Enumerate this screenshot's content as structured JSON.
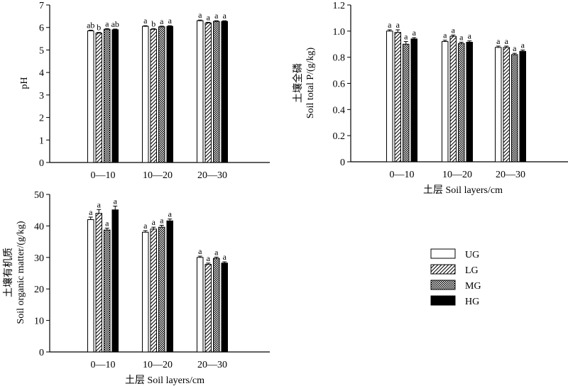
{
  "legend": {
    "entries": [
      {
        "key": "UG",
        "pattern": "white"
      },
      {
        "key": "LG",
        "pattern": "hatch"
      },
      {
        "key": "MG",
        "pattern": "checker"
      },
      {
        "key": "HG",
        "pattern": "black"
      }
    ]
  },
  "chart_data": [
    {
      "id": "ph",
      "type": "bar",
      "ylabel": "pH",
      "xlabel": "",
      "ylim": [
        0,
        7
      ],
      "yticks": [
        "0",
        "1",
        "2",
        "3",
        "4",
        "5",
        "6",
        "7"
      ],
      "categories": [
        "0—10",
        "10—20",
        "20—30"
      ],
      "series": [
        {
          "name": "UG",
          "values": [
            5.85,
            6.05,
            6.3
          ],
          "errors": [
            0.03,
            0.03,
            0.03
          ],
          "letters": [
            "ab",
            "a",
            "a"
          ]
        },
        {
          "name": "LG",
          "values": [
            5.75,
            5.92,
            6.2
          ],
          "errors": [
            0.03,
            0.03,
            0.03
          ],
          "letters": [
            "b",
            "b",
            "a"
          ]
        },
        {
          "name": "MG",
          "values": [
            5.92,
            6.03,
            6.27
          ],
          "errors": [
            0.03,
            0.03,
            0.03
          ],
          "letters": [
            "a",
            "a",
            "a"
          ]
        },
        {
          "name": "HG",
          "values": [
            5.9,
            6.05,
            6.27
          ],
          "errors": [
            0.03,
            0.03,
            0.03
          ],
          "letters": [
            "ab",
            "a",
            "a"
          ]
        }
      ]
    },
    {
      "id": "tp",
      "type": "bar",
      "ylabel_cn": "土壤全磷",
      "ylabel": "Soil total P/(g/kg)",
      "xlabel": "土层 Soil layers/cm",
      "ylim": [
        0,
        1.2
      ],
      "yticks": [
        "0",
        "0.2",
        "0.4",
        "0.6",
        "0.8",
        "1.0",
        "1.2"
      ],
      "categories": [
        "0—10",
        "10—20",
        "20—30"
      ],
      "series": [
        {
          "name": "UG",
          "values": [
            1.0,
            0.92,
            0.875
          ],
          "errors": [
            0.01,
            0.01,
            0.01
          ],
          "letters": [
            "a",
            "a",
            "a"
          ]
        },
        {
          "name": "LG",
          "values": [
            0.99,
            0.96,
            0.875
          ],
          "errors": [
            0.02,
            0.01,
            0.01
          ],
          "letters": [
            "a",
            "a",
            "a"
          ]
        },
        {
          "name": "MG",
          "values": [
            0.9,
            0.905,
            0.82
          ],
          "errors": [
            0.02,
            0.01,
            0.01
          ],
          "letters": [
            "a",
            "a",
            "a"
          ]
        },
        {
          "name": "HG",
          "values": [
            0.94,
            0.915,
            0.845
          ],
          "errors": [
            0.01,
            0.01,
            0.01
          ],
          "letters": [
            "a",
            "a",
            "a"
          ]
        }
      ]
    },
    {
      "id": "som",
      "type": "bar",
      "ylabel_cn": "土壤有机质",
      "ylabel": "Soil organic matter/(g/kg)",
      "xlabel": "土层 Soil layers/cm",
      "ylim": [
        0,
        50
      ],
      "yticks": [
        "0",
        "10",
        "20",
        "30",
        "40",
        "50"
      ],
      "categories": [
        "0—10",
        "10—20",
        "20—30"
      ],
      "series": [
        {
          "name": "UG",
          "values": [
            42.0,
            38.0,
            30.0
          ],
          "errors": [
            0.8,
            0.5,
            0.4
          ],
          "letters": [
            "a",
            "a",
            "a"
          ]
        },
        {
          "name": "LG",
          "values": [
            44.0,
            39.0,
            27.8
          ],
          "errors": [
            1.2,
            0.6,
            0.4
          ],
          "letters": [
            "a",
            "a",
            "a"
          ]
        },
        {
          "name": "MG",
          "values": [
            38.7,
            39.6,
            29.7
          ],
          "errors": [
            0.6,
            0.6,
            0.4
          ],
          "letters": [
            "a",
            "a",
            "a"
          ]
        },
        {
          "name": "HG",
          "values": [
            45.1,
            41.6,
            28.2
          ],
          "errors": [
            1.2,
            0.6,
            0.4
          ],
          "letters": [
            "a",
            "a",
            "a"
          ]
        }
      ]
    }
  ]
}
